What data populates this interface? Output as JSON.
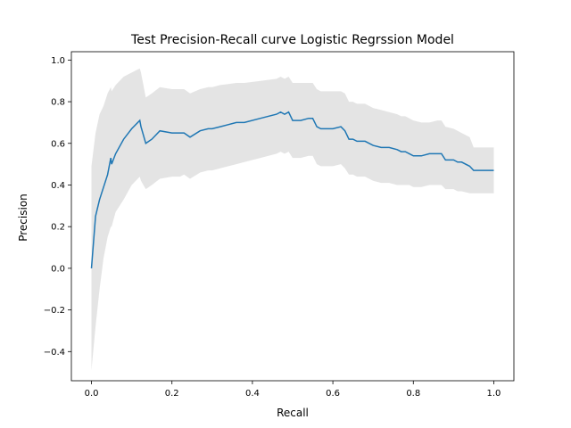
{
  "chart_data": {
    "type": "line",
    "title": "Test Precision-Recall curve Logistic Regrssion Model",
    "xlabel": "Recall",
    "ylabel": "Precision",
    "xlim": [
      -0.05,
      1.05
    ],
    "ylim": [
      -0.54,
      1.04
    ],
    "xticks": [
      0.0,
      0.2,
      0.4,
      0.6,
      0.8,
      1.0
    ],
    "xtick_labels": [
      "0.0",
      "0.2",
      "0.4",
      "0.6",
      "0.8",
      "1.0"
    ],
    "yticks": [
      -0.4,
      -0.2,
      0.0,
      0.2,
      0.4,
      0.6,
      0.8,
      1.0
    ],
    "ytick_labels": [
      "−0.4",
      "−0.2",
      "0.0",
      "0.2",
      "0.4",
      "0.6",
      "0.8",
      "1.0"
    ],
    "grid": false,
    "legend": "none",
    "colors": {
      "line": "#1f77b4",
      "band": "#d9d9d9"
    },
    "series": [
      {
        "x": [
          0.0,
          0.01,
          0.02,
          0.03,
          0.04,
          0.048,
          0.05,
          0.06,
          0.08,
          0.1,
          0.12,
          0.123,
          0.135,
          0.15,
          0.17,
          0.2,
          0.22,
          0.23,
          0.245,
          0.27,
          0.29,
          0.3,
          0.32,
          0.36,
          0.38,
          0.42,
          0.46,
          0.47,
          0.48,
          0.49,
          0.5,
          0.52,
          0.54,
          0.55,
          0.56,
          0.57,
          0.58,
          0.6,
          0.62,
          0.63,
          0.64,
          0.65,
          0.66,
          0.68,
          0.7,
          0.72,
          0.74,
          0.76,
          0.77,
          0.78,
          0.79,
          0.8,
          0.82,
          0.84,
          0.86,
          0.87,
          0.88,
          0.9,
          0.91,
          0.92,
          0.94,
          0.95,
          1.0
        ],
        "y": [
          0.0,
          0.25,
          0.33,
          0.39,
          0.45,
          0.53,
          0.5,
          0.55,
          0.62,
          0.67,
          0.71,
          0.68,
          0.6,
          0.62,
          0.66,
          0.65,
          0.65,
          0.65,
          0.63,
          0.66,
          0.67,
          0.67,
          0.68,
          0.7,
          0.7,
          0.72,
          0.74,
          0.75,
          0.74,
          0.75,
          0.71,
          0.71,
          0.72,
          0.72,
          0.68,
          0.67,
          0.67,
          0.67,
          0.68,
          0.66,
          0.62,
          0.62,
          0.61,
          0.61,
          0.59,
          0.58,
          0.58,
          0.57,
          0.56,
          0.56,
          0.55,
          0.54,
          0.54,
          0.55,
          0.55,
          0.55,
          0.52,
          0.52,
          0.51,
          0.51,
          0.49,
          0.47,
          0.47
        ],
        "lower": [
          -0.49,
          -0.28,
          -0.1,
          0.05,
          0.15,
          0.2,
          0.2,
          0.27,
          0.33,
          0.4,
          0.44,
          0.42,
          0.38,
          0.4,
          0.43,
          0.44,
          0.44,
          0.45,
          0.43,
          0.46,
          0.47,
          0.47,
          0.48,
          0.5,
          0.51,
          0.53,
          0.55,
          0.56,
          0.55,
          0.56,
          0.53,
          0.53,
          0.54,
          0.54,
          0.5,
          0.49,
          0.49,
          0.49,
          0.5,
          0.48,
          0.45,
          0.45,
          0.44,
          0.44,
          0.42,
          0.41,
          0.41,
          0.4,
          0.4,
          0.4,
          0.4,
          0.39,
          0.39,
          0.4,
          0.4,
          0.4,
          0.38,
          0.38,
          0.37,
          0.37,
          0.36,
          0.36,
          0.36
        ],
        "upper": [
          0.49,
          0.65,
          0.74,
          0.78,
          0.84,
          0.87,
          0.85,
          0.88,
          0.92,
          0.94,
          0.96,
          0.94,
          0.82,
          0.84,
          0.87,
          0.86,
          0.86,
          0.86,
          0.84,
          0.86,
          0.87,
          0.87,
          0.88,
          0.89,
          0.89,
          0.9,
          0.91,
          0.92,
          0.91,
          0.92,
          0.89,
          0.89,
          0.89,
          0.89,
          0.86,
          0.85,
          0.85,
          0.85,
          0.85,
          0.84,
          0.8,
          0.8,
          0.79,
          0.79,
          0.77,
          0.76,
          0.75,
          0.74,
          0.73,
          0.73,
          0.72,
          0.71,
          0.7,
          0.7,
          0.71,
          0.71,
          0.68,
          0.67,
          0.66,
          0.65,
          0.63,
          0.58,
          0.58
        ]
      }
    ]
  }
}
